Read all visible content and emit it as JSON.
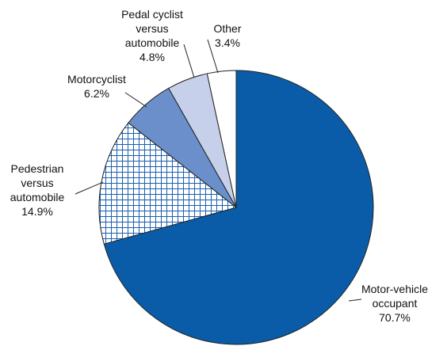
{
  "chart_data": {
    "type": "pie",
    "categories": [
      "Motor-vehicle\noccupant",
      "Pedestrian\nversus\nautomobile",
      "Motorcyclist",
      "Pedal cyclist\nversus\nautomobile",
      "Other"
    ],
    "values": [
      70.7,
      14.9,
      6.2,
      4.8,
      3.4
    ],
    "value_labels": [
      "70.7%",
      "14.9%",
      "6.2%",
      "4.8%",
      "3.4%"
    ],
    "colors": [
      "#0a5ca8",
      "hatch",
      "#6a8fca",
      "#c6d0ea",
      "#ffffff"
    ]
  }
}
